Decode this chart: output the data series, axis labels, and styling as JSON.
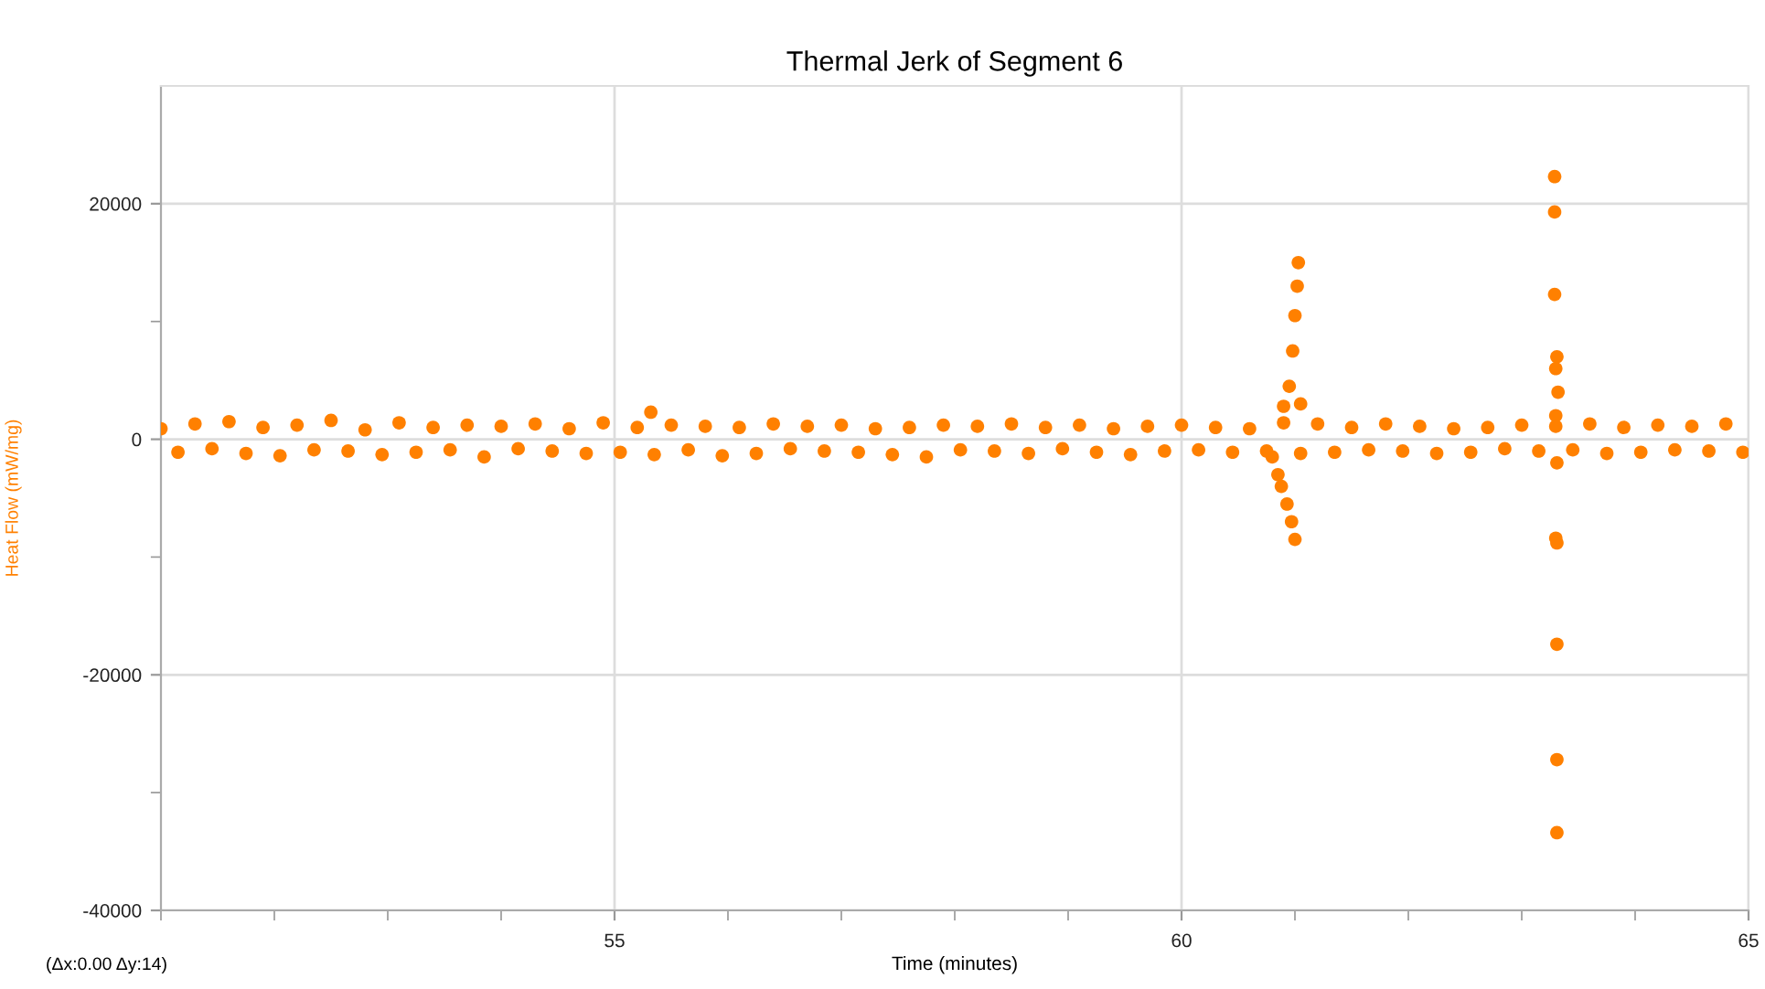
{
  "chart_data": {
    "type": "scatter",
    "title": "Thermal Jerk of Segment 6",
    "xlabel": "Time (minutes)",
    "ylabel": "Heat Flow (mW/mg)",
    "annotations": [
      "(Δx:0.00 Δy:14)"
    ],
    "xlim": [
      51,
      65
    ],
    "xticks": [
      {
        "value": 51,
        "label": null
      },
      {
        "value": 52,
        "label": null
      },
      {
        "value": 53,
        "label": null
      },
      {
        "value": 54,
        "label": null
      },
      55,
      {
        "value": 56,
        "label": null
      },
      {
        "value": 57,
        "label": null
      },
      {
        "value": 58,
        "label": null
      },
      {
        "value": 59,
        "label": null
      },
      60,
      {
        "value": 61,
        "label": null
      },
      {
        "value": 62,
        "label": null
      },
      {
        "value": 63,
        "label": null
      },
      {
        "value": 64,
        "label": null
      },
      65
    ],
    "ylim": [
      -40000,
      30000
    ],
    "yticks": [
      -40000,
      {
        "value": -30000,
        "label": null
      },
      -20000,
      {
        "value": -10000,
        "label": null
      },
      0,
      {
        "value": 10000,
        "label": null
      },
      20000
    ],
    "grid": true,
    "marker": "circle",
    "series": [
      {
        "color": "#ff8000",
        "x": [
          51.0,
          51.15,
          51.3,
          51.45,
          51.6,
          51.75,
          51.9,
          52.05,
          52.2,
          52.35,
          52.5,
          52.65,
          52.8,
          52.95,
          53.1,
          53.25,
          53.4,
          53.55,
          53.7,
          53.85,
          54.0,
          54.15,
          54.3,
          54.45,
          54.6,
          54.75,
          54.9,
          55.05,
          55.2,
          55.35,
          55.5,
          55.65,
          55.8,
          55.95,
          56.1,
          56.25,
          56.4,
          56.55,
          56.7,
          56.85,
          57.0,
          57.15,
          57.3,
          57.45,
          57.6,
          57.75,
          57.9,
          58.05,
          58.2,
          58.35,
          58.5,
          58.65,
          58.8,
          58.95,
          59.1,
          59.25,
          59.4,
          59.55,
          59.7,
          59.85,
          60.0,
          60.15,
          60.3,
          60.45,
          60.6,
          60.75,
          60.9,
          61.05,
          61.2,
          61.35,
          61.5,
          61.65,
          61.8,
          61.95,
          62.1,
          62.25,
          62.4,
          62.55,
          62.7,
          62.85,
          63.0,
          63.15,
          63.3,
          63.45,
          63.6,
          63.75,
          63.9,
          64.05,
          64.2,
          64.35,
          64.5,
          64.65,
          64.8,
          64.95,
          55.32,
          60.8,
          60.85,
          60.88,
          60.9,
          60.93,
          60.95,
          60.97,
          60.98,
          61.0,
          61.0,
          61.02,
          61.03,
          61.05,
          63.29,
          63.29,
          63.29,
          63.31,
          63.3,
          63.32,
          63.3,
          63.31,
          63.3,
          63.31,
          63.31,
          63.31,
          63.31
        ],
        "values": [
          900,
          -1100,
          1300,
          -800,
          1500,
          -1200,
          1000,
          -1400,
          1200,
          -900,
          1600,
          -1000,
          800,
          -1300,
          1400,
          -1100,
          1000,
          -900,
          1200,
          -1500,
          1100,
          -800,
          1300,
          -1000,
          900,
          -1200,
          1400,
          -1100,
          1000,
          -1300,
          1200,
          -900,
          1100,
          -1400,
          1000,
          -1200,
          1300,
          -800,
          1100,
          -1000,
          1200,
          -1100,
          900,
          -1300,
          1000,
          -1500,
          1200,
          -900,
          1100,
          -1000,
          1300,
          -1200,
          1000,
          -800,
          1200,
          -1100,
          900,
          -1300,
          1100,
          -1000,
          1200,
          -900,
          1000,
          -1100,
          900,
          -1000,
          1400,
          -1200,
          1300,
          -1100,
          1000,
          -900,
          1300,
          -1000,
          1100,
          -1200,
          900,
          -1100,
          1000,
          -800,
          1200,
          -1000,
          1100,
          -900,
          1300,
          -1200,
          1000,
          -1100,
          1200,
          -900,
          1100,
          -1000,
          1300,
          -1100,
          2300,
          -1500,
          -3000,
          -4000,
          2800,
          -5500,
          4500,
          -7000,
          7500,
          -8500,
          10500,
          13000,
          15000,
          3000,
          22300,
          19300,
          12300,
          7000,
          6000,
          4000,
          2000,
          -2000,
          -8400,
          -8800,
          -17400,
          -27200,
          -33400
        ]
      }
    ]
  }
}
